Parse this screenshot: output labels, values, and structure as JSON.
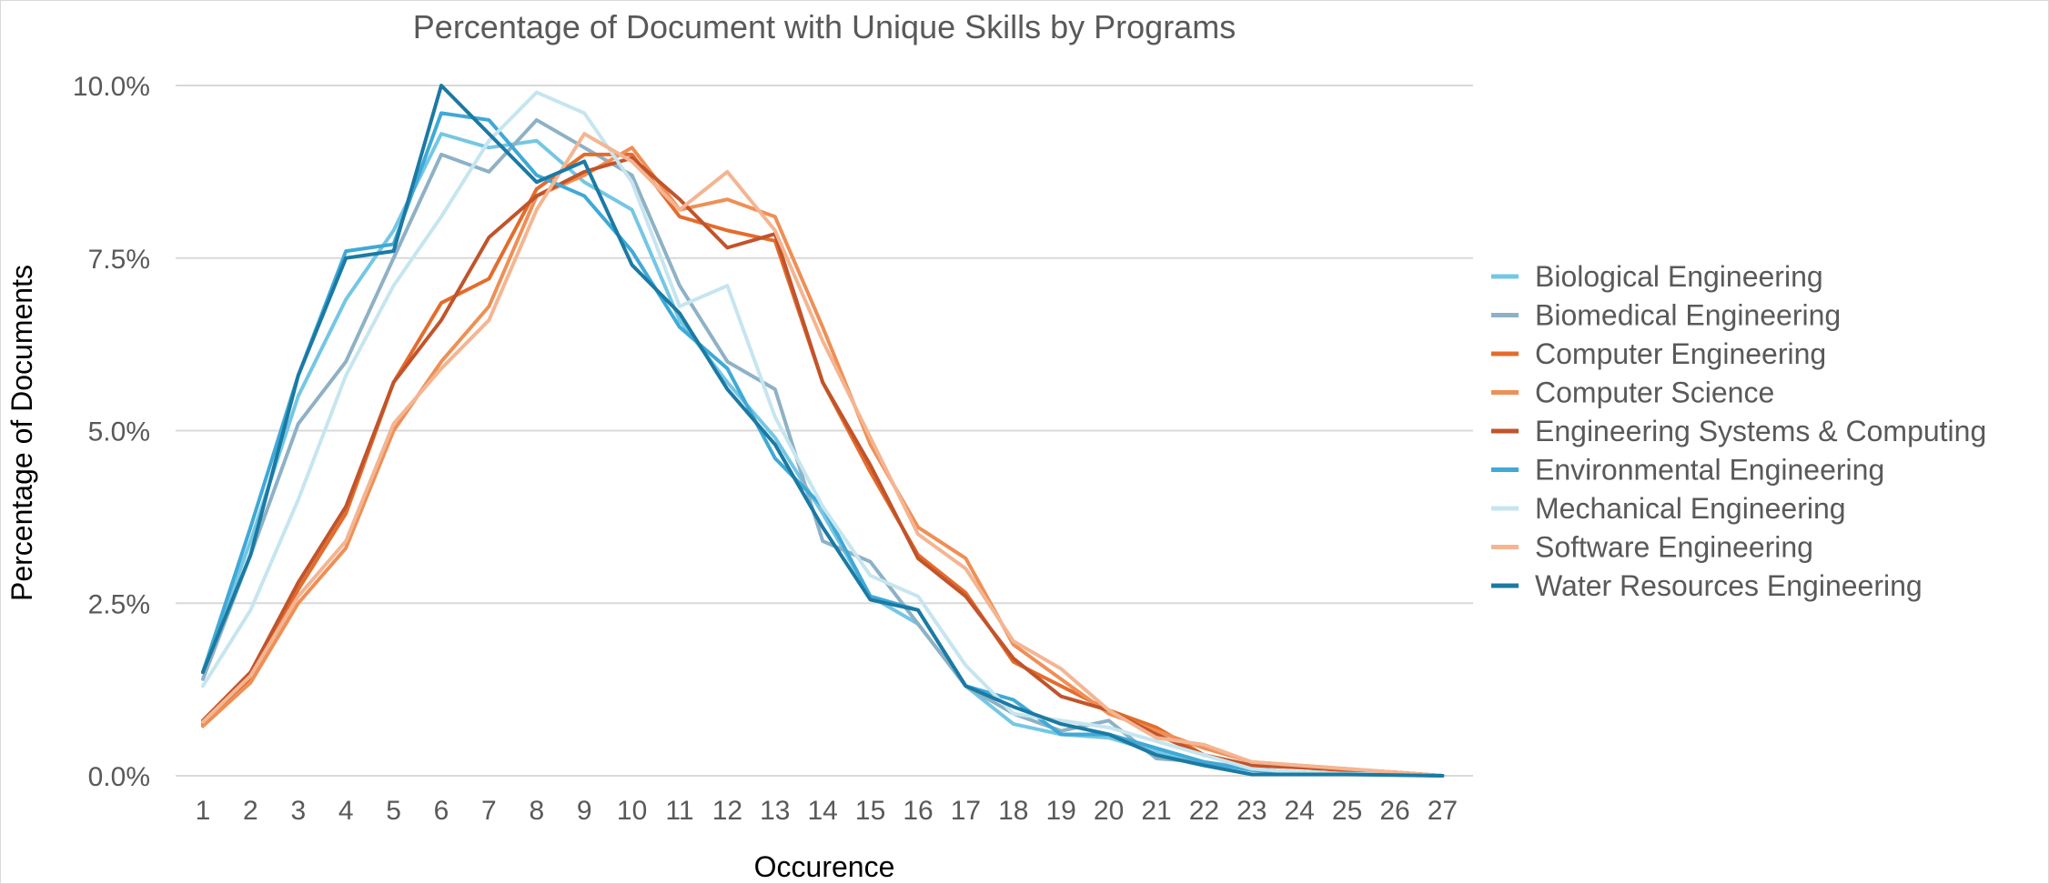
{
  "chart_data": {
    "type": "line",
    "title": "Percentage of Document with Unique Skills by Programs",
    "xlabel": "Occurence",
    "ylabel": "Percentage of Documents",
    "x": [
      1,
      2,
      3,
      4,
      5,
      6,
      7,
      8,
      9,
      10,
      11,
      12,
      13,
      14,
      15,
      16,
      17,
      18,
      19,
      20,
      21,
      22,
      23,
      24,
      25,
      26,
      27
    ],
    "ylim": [
      0,
      10
    ],
    "yticks": [
      0,
      2.5,
      5,
      7.5,
      10
    ],
    "ytick_labels": [
      "0.0%",
      "2.5%",
      "5.0%",
      "7.5%",
      "10.0%"
    ],
    "grid": "horizontal",
    "legend_position": "right",
    "series": [
      {
        "name": "Biological Engineering",
        "color": "#74c7e3",
        "values": [
          1.5,
          3.4,
          5.5,
          6.9,
          7.9,
          9.3,
          9.1,
          9.2,
          8.6,
          8.2,
          6.6,
          5.7,
          4.9,
          3.8,
          2.6,
          2.2,
          1.3,
          0.75,
          0.6,
          0.55,
          0.35,
          0.2,
          0.1,
          0.05,
          0.03,
          0.02,
          0.0
        ]
      },
      {
        "name": "Biomedical Engineering",
        "color": "#8eb1c5",
        "values": [
          1.4,
          3.2,
          5.1,
          6.0,
          7.5,
          9.0,
          8.75,
          9.5,
          9.1,
          8.7,
          7.1,
          6.0,
          5.6,
          3.4,
          3.1,
          2.2,
          1.3,
          0.9,
          0.65,
          0.8,
          0.25,
          0.2,
          0.1,
          0.05,
          0.03,
          0.02,
          0.0
        ]
      },
      {
        "name": "Computer Engineering",
        "color": "#e46c2c",
        "values": [
          0.75,
          1.4,
          2.7,
          3.8,
          5.7,
          6.85,
          7.2,
          8.5,
          9.0,
          9.0,
          8.1,
          7.9,
          7.75,
          5.7,
          4.4,
          3.2,
          2.65,
          1.65,
          1.3,
          0.95,
          0.7,
          0.3,
          0.15,
          0.12,
          0.08,
          0.05,
          0.0
        ]
      },
      {
        "name": "Computer Science",
        "color": "#ef8f55",
        "values": [
          0.72,
          1.35,
          2.5,
          3.3,
          5.0,
          6.0,
          6.8,
          8.4,
          8.7,
          9.1,
          8.2,
          8.35,
          8.1,
          6.5,
          4.8,
          3.6,
          3.15,
          1.9,
          1.4,
          0.9,
          0.65,
          0.4,
          0.2,
          0.15,
          0.1,
          0.05,
          0.0
        ]
      },
      {
        "name": "Engineering Systems & Computing",
        "color": "#c1542b",
        "values": [
          0.8,
          1.5,
          2.8,
          3.9,
          5.7,
          6.6,
          7.8,
          8.4,
          8.75,
          8.95,
          8.35,
          7.65,
          7.85,
          5.7,
          4.5,
          3.15,
          2.6,
          1.7,
          1.15,
          0.95,
          0.6,
          0.3,
          0.15,
          0.12,
          0.08,
          0.05,
          0.0
        ]
      },
      {
        "name": "Environmental Engineering",
        "color": "#3fa9d7",
        "values": [
          1.5,
          3.6,
          5.8,
          7.6,
          7.7,
          9.6,
          9.5,
          8.7,
          8.4,
          7.6,
          6.5,
          5.9,
          4.6,
          3.9,
          2.6,
          2.4,
          1.3,
          1.1,
          0.6,
          0.6,
          0.4,
          0.2,
          0.08,
          0.05,
          0.03,
          0.02,
          0.0
        ]
      },
      {
        "name": "Mechanical Engineering",
        "color": "#c6e5ef",
        "values": [
          1.3,
          2.4,
          4.0,
          5.8,
          7.1,
          8.1,
          9.2,
          9.9,
          9.6,
          8.6,
          6.8,
          7.1,
          5.2,
          3.9,
          2.9,
          2.6,
          1.6,
          0.9,
          0.8,
          0.7,
          0.5,
          0.3,
          0.1,
          0.05,
          0.03,
          0.02,
          0.0
        ]
      },
      {
        "name": "Software Engineering",
        "color": "#f4b592",
        "values": [
          0.78,
          1.45,
          2.6,
          3.4,
          5.1,
          5.9,
          6.6,
          8.2,
          9.3,
          8.9,
          8.2,
          8.75,
          7.9,
          6.3,
          4.9,
          3.5,
          3.0,
          1.95,
          1.55,
          0.95,
          0.55,
          0.45,
          0.2,
          0.15,
          0.1,
          0.05,
          0.0
        ]
      },
      {
        "name": "Water Resources Engineering",
        "color": "#1b7aa3",
        "values": [
          1.5,
          3.2,
          5.8,
          7.5,
          7.6,
          10.0,
          9.3,
          8.6,
          8.9,
          7.4,
          6.7,
          5.6,
          4.8,
          3.6,
          2.55,
          2.4,
          1.3,
          1.0,
          0.75,
          0.6,
          0.3,
          0.15,
          0.02,
          0.02,
          0.02,
          0.01,
          0.0
        ]
      }
    ]
  }
}
